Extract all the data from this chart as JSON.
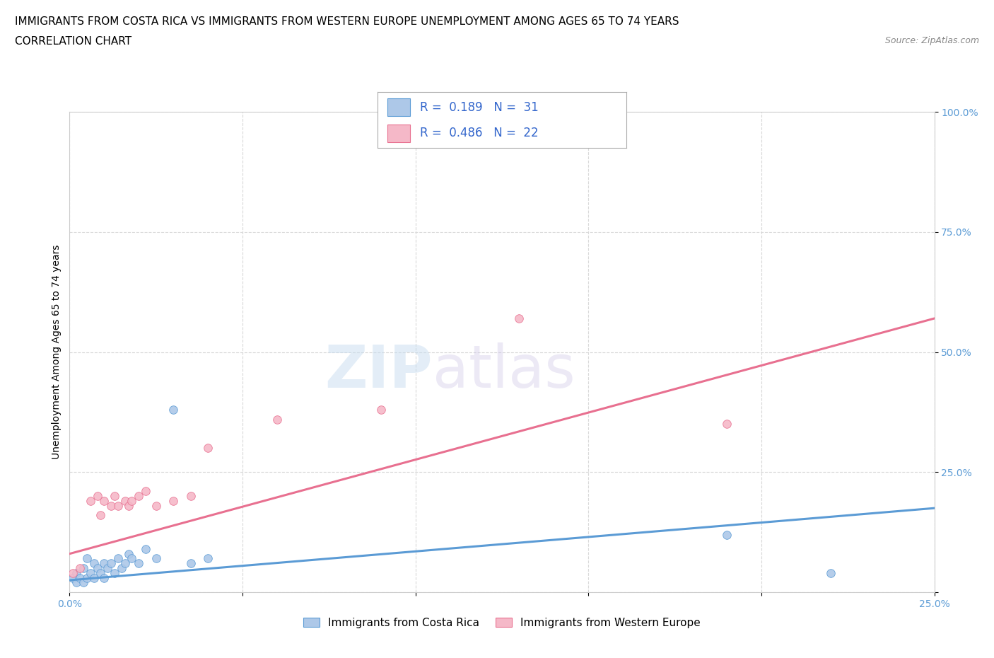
{
  "title_line1": "IMMIGRANTS FROM COSTA RICA VS IMMIGRANTS FROM WESTERN EUROPE UNEMPLOYMENT AMONG AGES 65 TO 74 YEARS",
  "title_line2": "CORRELATION CHART",
  "source_text": "Source: ZipAtlas.com",
  "ylabel": "Unemployment Among Ages 65 to 74 years",
  "xlim": [
    0.0,
    0.25
  ],
  "ylim": [
    0.0,
    1.0
  ],
  "xticks": [
    0.0,
    0.05,
    0.1,
    0.15,
    0.2,
    0.25
  ],
  "yticks": [
    0.0,
    0.25,
    0.5,
    0.75,
    1.0
  ],
  "costa_rica_color": "#adc8e8",
  "western_europe_color": "#f5b8c8",
  "trend_costa_rica_color": "#5b9bd5",
  "trend_western_europe_color": "#e87090",
  "costa_rica_R": 0.189,
  "costa_rica_N": 31,
  "western_europe_R": 0.486,
  "western_europe_N": 22,
  "watermark_zip": "ZIP",
  "watermark_atlas": "atlas",
  "costa_rica_x": [
    0.001,
    0.002,
    0.002,
    0.003,
    0.004,
    0.004,
    0.005,
    0.005,
    0.006,
    0.007,
    0.007,
    0.008,
    0.009,
    0.01,
    0.01,
    0.011,
    0.012,
    0.013,
    0.014,
    0.015,
    0.016,
    0.017,
    0.018,
    0.02,
    0.022,
    0.025,
    0.03,
    0.035,
    0.04,
    0.19,
    0.22
  ],
  "costa_rica_y": [
    0.03,
    0.02,
    0.04,
    0.03,
    0.02,
    0.05,
    0.03,
    0.07,
    0.04,
    0.03,
    0.06,
    0.05,
    0.04,
    0.03,
    0.06,
    0.05,
    0.06,
    0.04,
    0.07,
    0.05,
    0.06,
    0.08,
    0.07,
    0.06,
    0.09,
    0.07,
    0.38,
    0.06,
    0.07,
    0.12,
    0.04
  ],
  "western_europe_x": [
    0.001,
    0.003,
    0.006,
    0.008,
    0.009,
    0.01,
    0.012,
    0.013,
    0.014,
    0.016,
    0.017,
    0.018,
    0.02,
    0.022,
    0.025,
    0.03,
    0.035,
    0.04,
    0.06,
    0.09,
    0.13,
    0.19
  ],
  "western_europe_y": [
    0.04,
    0.05,
    0.19,
    0.2,
    0.16,
    0.19,
    0.18,
    0.2,
    0.18,
    0.19,
    0.18,
    0.19,
    0.2,
    0.21,
    0.18,
    0.19,
    0.2,
    0.3,
    0.36,
    0.38,
    0.57,
    0.35
  ],
  "background_color": "#ffffff",
  "grid_color": "#d8d8d8",
  "legend_label_cr": "Immigrants from Costa Rica",
  "legend_label_we": "Immigrants from Western Europe",
  "title_fontsize": 11,
  "axis_label_fontsize": 10,
  "tick_fontsize": 10,
  "legend_fontsize": 11,
  "marker_size": 70,
  "trend_cr_x0": 0.0,
  "trend_cr_x1": 0.25,
  "trend_cr_y0": 0.025,
  "trend_cr_y1": 0.175,
  "trend_we_x0": 0.0,
  "trend_we_x1": 0.25,
  "trend_we_y0": 0.08,
  "trend_we_y1": 0.57
}
